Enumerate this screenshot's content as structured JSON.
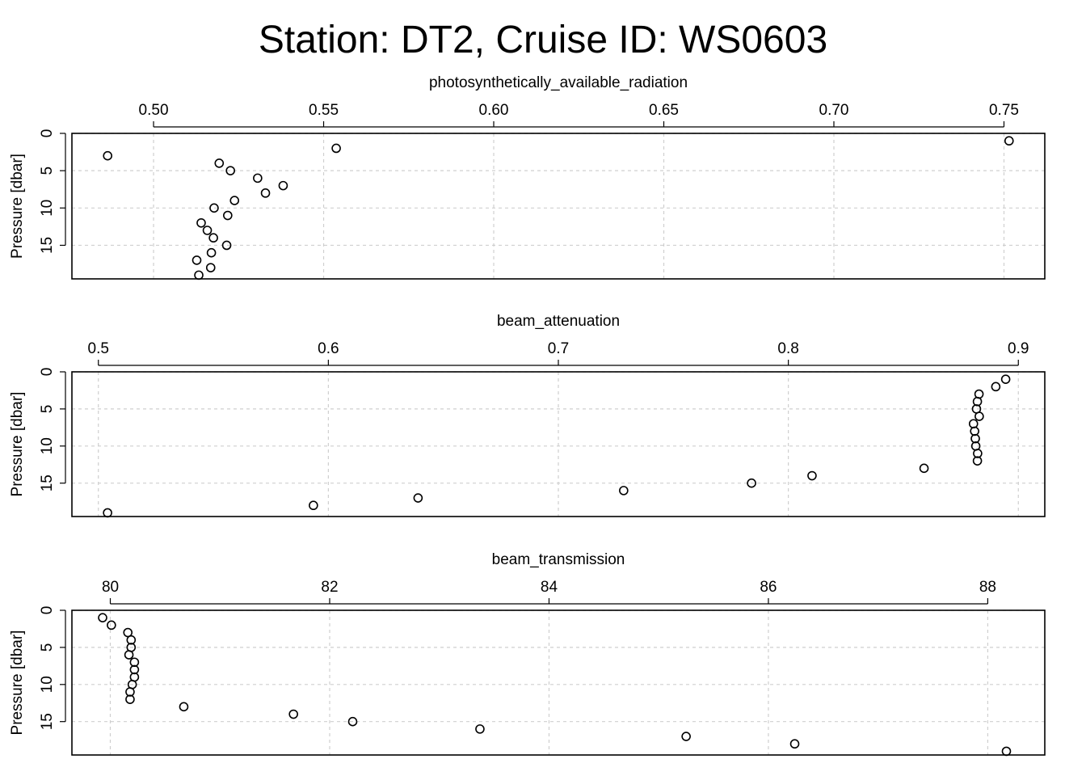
{
  "title": "Station: DT2, Cruise ID: WS0603",
  "chart_data": [
    {
      "type": "scatter",
      "xlabel": "photosynthetically_available_radiation",
      "ylabel": "Pressure [dbar]",
      "xlim": [
        0.476,
        0.762
      ],
      "ylim": [
        0,
        19.5
      ],
      "y_reversed": true,
      "x_ticks": [
        "0.50",
        "0.55",
        "0.60",
        "0.65",
        "0.70",
        "0.75"
      ],
      "y_ticks": [
        "0",
        "5",
        "10",
        "15"
      ],
      "grid": true,
      "marker": "open-circle",
      "points": [
        {
          "x": 0.7515,
          "y": 1
        },
        {
          "x": 0.5537,
          "y": 2
        },
        {
          "x": 0.4865,
          "y": 3
        },
        {
          "x": 0.5193,
          "y": 4
        },
        {
          "x": 0.5226,
          "y": 5
        },
        {
          "x": 0.5306,
          "y": 6
        },
        {
          "x": 0.5381,
          "y": 7
        },
        {
          "x": 0.5329,
          "y": 8
        },
        {
          "x": 0.5238,
          "y": 9
        },
        {
          "x": 0.5178,
          "y": 10
        },
        {
          "x": 0.5218,
          "y": 11
        },
        {
          "x": 0.514,
          "y": 12
        },
        {
          "x": 0.5158,
          "y": 13
        },
        {
          "x": 0.5176,
          "y": 14
        },
        {
          "x": 0.5215,
          "y": 15
        },
        {
          "x": 0.517,
          "y": 16
        },
        {
          "x": 0.5127,
          "y": 17
        },
        {
          "x": 0.5168,
          "y": 18
        },
        {
          "x": 0.5133,
          "y": 19
        }
      ]
    },
    {
      "type": "scatter",
      "xlabel": "beam_attenuation",
      "ylabel": "Pressure [dbar]",
      "xlim": [
        0.4885,
        0.9115
      ],
      "ylim": [
        0,
        19.5
      ],
      "y_reversed": true,
      "x_ticks": [
        "0.5",
        "0.6",
        "0.7",
        "0.8",
        "0.9"
      ],
      "y_ticks": [
        "0",
        "5",
        "10",
        "15"
      ],
      "grid": true,
      "marker": "open-circle",
      "points": [
        {
          "x": 0.8945,
          "y": 1
        },
        {
          "x": 0.8902,
          "y": 2
        },
        {
          "x": 0.8829,
          "y": 3
        },
        {
          "x": 0.8822,
          "y": 4
        },
        {
          "x": 0.8818,
          "y": 5
        },
        {
          "x": 0.883,
          "y": 6
        },
        {
          "x": 0.8805,
          "y": 7
        },
        {
          "x": 0.881,
          "y": 8
        },
        {
          "x": 0.8813,
          "y": 9
        },
        {
          "x": 0.8815,
          "y": 10
        },
        {
          "x": 0.8823,
          "y": 11
        },
        {
          "x": 0.8822,
          "y": 12
        },
        {
          "x": 0.859,
          "y": 13
        },
        {
          "x": 0.8103,
          "y": 14
        },
        {
          "x": 0.784,
          "y": 15
        },
        {
          "x": 0.7284,
          "y": 16
        },
        {
          "x": 0.639,
          "y": 17
        },
        {
          "x": 0.5935,
          "y": 18
        },
        {
          "x": 0.504,
          "y": 19
        }
      ]
    },
    {
      "type": "scatter",
      "xlabel": "beam_transmission",
      "ylabel": "Pressure [dbar]",
      "xlim": [
        79.65,
        88.52
      ],
      "ylim": [
        0,
        19.5
      ],
      "y_reversed": true,
      "x_ticks": [
        "80",
        "82",
        "84",
        "86",
        "88"
      ],
      "y_ticks": [
        "0",
        "5",
        "10",
        "15"
      ],
      "grid": true,
      "marker": "open-circle",
      "points": [
        {
          "x": 79.93,
          "y": 1
        },
        {
          "x": 80.01,
          "y": 2
        },
        {
          "x": 80.16,
          "y": 3
        },
        {
          "x": 80.19,
          "y": 4
        },
        {
          "x": 80.19,
          "y": 5
        },
        {
          "x": 80.17,
          "y": 6
        },
        {
          "x": 80.22,
          "y": 7
        },
        {
          "x": 80.22,
          "y": 8
        },
        {
          "x": 80.22,
          "y": 9
        },
        {
          "x": 80.2,
          "y": 10
        },
        {
          "x": 80.18,
          "y": 11
        },
        {
          "x": 80.18,
          "y": 12
        },
        {
          "x": 80.67,
          "y": 13
        },
        {
          "x": 81.67,
          "y": 14
        },
        {
          "x": 82.21,
          "y": 15
        },
        {
          "x": 83.37,
          "y": 16
        },
        {
          "x": 85.25,
          "y": 17
        },
        {
          "x": 86.24,
          "y": 18
        },
        {
          "x": 88.17,
          "y": 19
        }
      ]
    }
  ]
}
